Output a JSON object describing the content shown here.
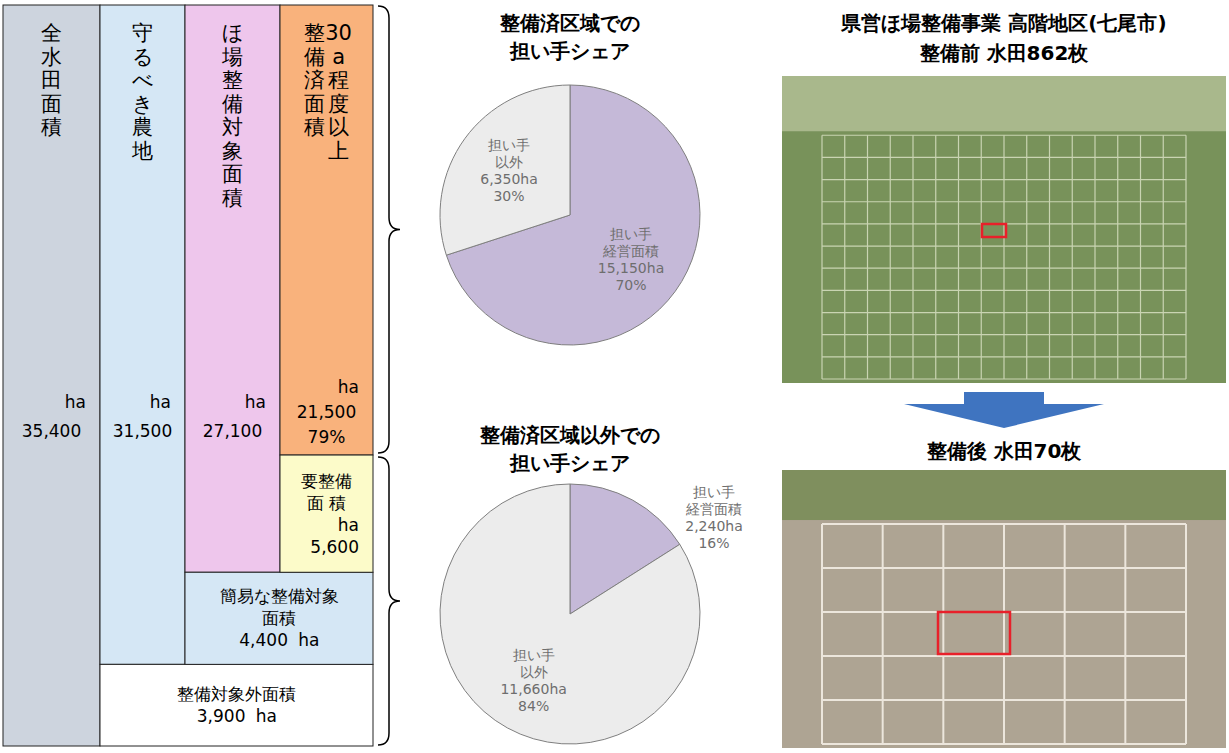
{
  "breakdown": {
    "columns": [
      {
        "label": "全水田面積",
        "value": 35400,
        "value_label": "35,400",
        "unit": "ha",
        "color": "#cdd4de"
      },
      {
        "label": "守るべき農地",
        "value": 31500,
        "value_label": "31,500",
        "unit": "ha",
        "color": "#d5e7f5"
      },
      {
        "label": "ほ場整備対象面積",
        "value": 27100,
        "value_label": "27,100",
        "unit": "ha",
        "color": "#eec6ec"
      },
      {
        "label": "30a程度以上\n整備済面積",
        "value": 21500,
        "value_label": "21,500",
        "unit": "ha",
        "share": 79,
        "share_label": "79%",
        "color": "#f9b27c"
      }
    ],
    "remainders": [
      {
        "label": "整備対象外面積",
        "value": 3900,
        "value_label": "3,900",
        "unit": "ha",
        "color": "#ffffff"
      },
      {
        "label": "簡易な整備対象\n面積",
        "value": 4400,
        "value_label": "4,400",
        "unit": "ha",
        "color": "#d5e7f5"
      },
      {
        "label": "要整備\n面 積",
        "value": 5600,
        "value_label": "5,600",
        "unit": "ha",
        "color": "#fcfbc9"
      }
    ]
  },
  "chart_data": [
    {
      "type": "pie",
      "title": "整備済区域での\n担い手シェア",
      "categories": [
        "担い手\n経営面積",
        "担い手\n以外"
      ],
      "values": [
        70,
        30
      ],
      "value_labels": [
        "70%",
        "30%"
      ],
      "areas": [
        15150,
        6350
      ],
      "area_labels": [
        "15,150ha",
        "6,350ha"
      ],
      "colors": [
        "#c5b9d8",
        "#ececec"
      ],
      "data_labels": true
    },
    {
      "type": "pie",
      "title": "整備済区域以外での\n担い手シェア",
      "categories": [
        "担い手\n経営面積",
        "担い手\n以外"
      ],
      "values": [
        16,
        84
      ],
      "value_labels": [
        "16%",
        "84%"
      ],
      "areas": [
        2240,
        11660
      ],
      "area_labels": [
        "2,240ha",
        "11,660ha"
      ],
      "colors": [
        "#c5b9d8",
        "#ececec"
      ],
      "data_labels": true
    }
  ],
  "photos": {
    "title": "県営ほ場整備事業 高階地区(七尾市)",
    "items": [
      {
        "caption": "整備前 水田862枚"
      },
      {
        "caption": "整備後 水田70枚"
      }
    ]
  }
}
